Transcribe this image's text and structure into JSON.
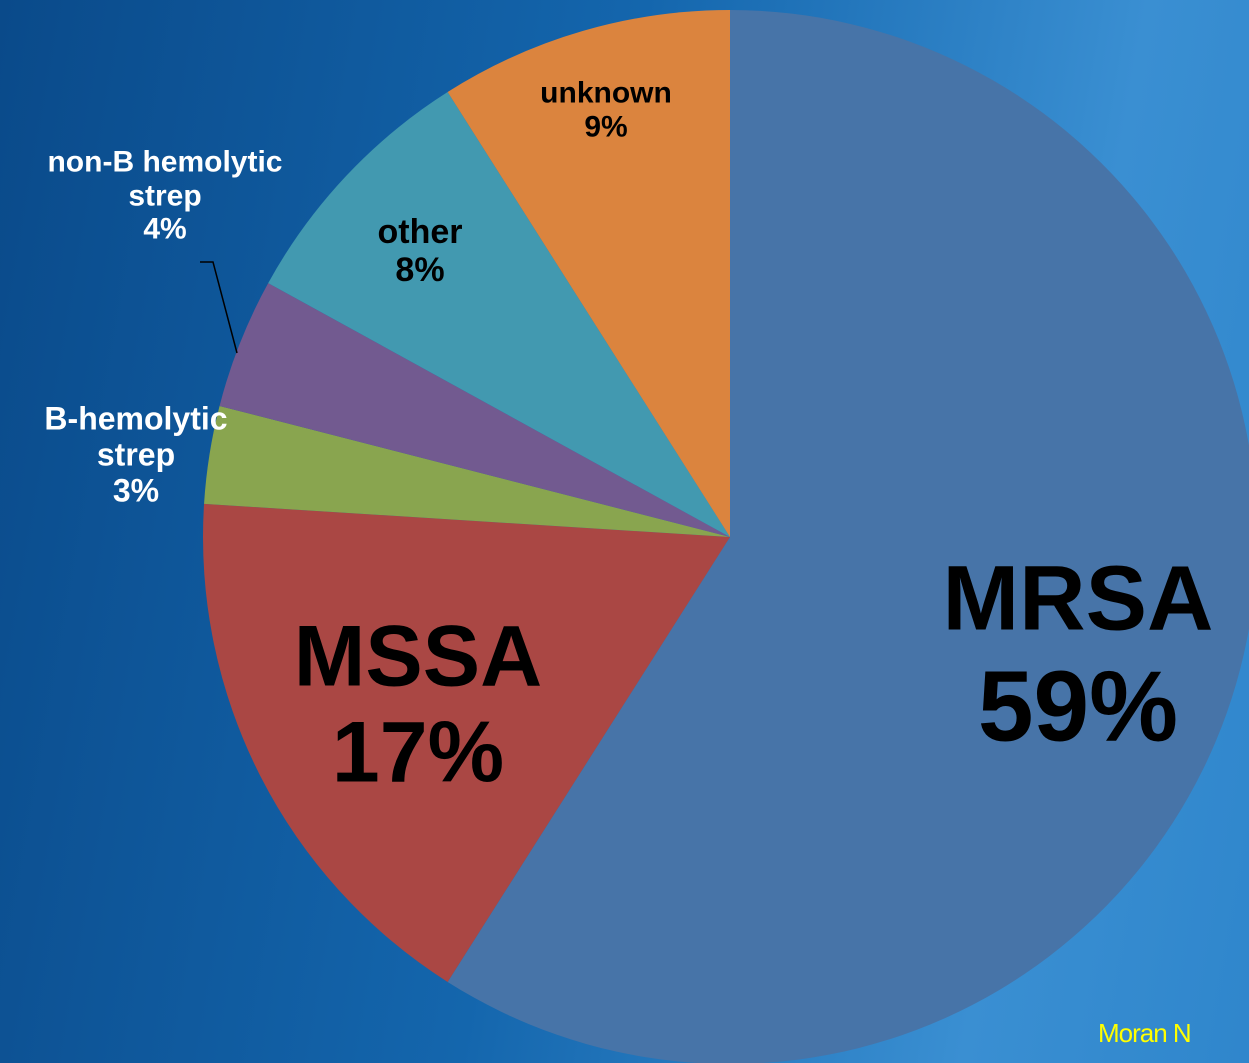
{
  "chart_data": {
    "type": "pie",
    "categories": [
      "MRSA",
      "MSSA",
      "B-hemolytic strep",
      "non-B hemolytic strep",
      "other",
      "unknown"
    ],
    "values": [
      59,
      17,
      3,
      4,
      8,
      9
    ],
    "value_labels": [
      "59%",
      "17%",
      "3%",
      "4%",
      "8%",
      "9%"
    ],
    "colors": [
      "#4774a8",
      "#aa4744",
      "#89a54f",
      "#725a90",
      "#4299b0",
      "#db843e"
    ],
    "source": "Moran N"
  }
}
